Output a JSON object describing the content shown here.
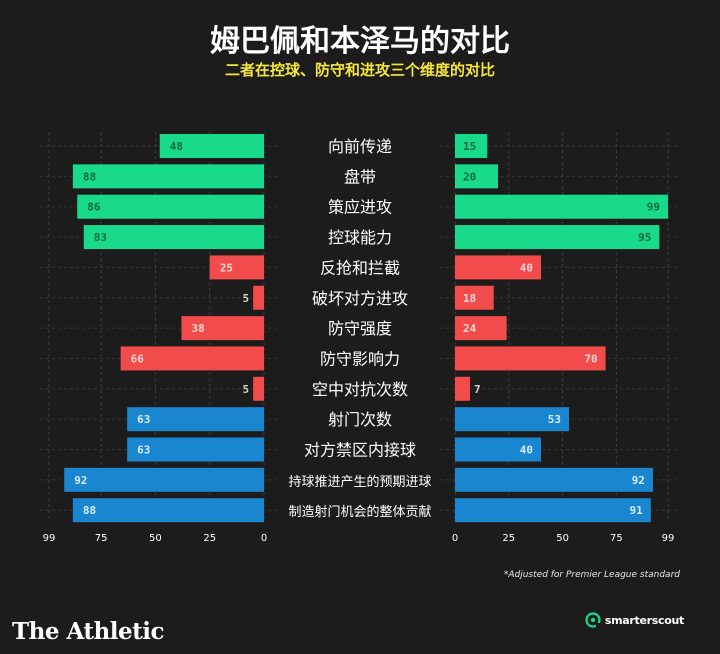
{
  "title": "姆巴佩和本泽马的对比",
  "subtitle": "二者在控球、防守和进攻三个维度的对比",
  "footnote": "*Adjusted for Premier League standard",
  "branding": {
    "publisher": "The Athletic",
    "partner": "smarterscout",
    "partner_icon": "smarterscout-logo-icon"
  },
  "chart_data": {
    "type": "bar",
    "orientation": "horizontal-butterfly",
    "categories": [
      "向前传递",
      "盘带",
      "策应进攻",
      "控球能力",
      "反抢和拦截",
      "破坏对方进攻",
      "防守强度",
      "防守影响力",
      "空中对抗次数",
      "射门次数",
      "对方禁区内接球",
      "持球推进产生的预期进球",
      "制造射门机会的整体贡献"
    ],
    "groups": [
      {
        "name": "控球",
        "color": "#19d98a",
        "label_color": "#0b6b3f",
        "indices": [
          0,
          1,
          2,
          3
        ]
      },
      {
        "name": "防守",
        "color": "#f24b4b",
        "label_color": "#ffd6d6",
        "indices": [
          4,
          5,
          6,
          7,
          8
        ]
      },
      {
        "name": "进攻",
        "color": "#1a86cf",
        "label_color": "#d6ecff",
        "indices": [
          9,
          10,
          11,
          12
        ]
      }
    ],
    "series": [
      {
        "side": "left",
        "values": [
          48,
          88,
          86,
          83,
          25,
          5,
          38,
          66,
          5,
          63,
          63,
          92,
          88
        ]
      },
      {
        "side": "right",
        "values": [
          15,
          20,
          99,
          95,
          40,
          18,
          24,
          70,
          7,
          53,
          40,
          92,
          91
        ]
      }
    ],
    "xlim": [
      0,
      99
    ],
    "ticks": [
      0,
      25,
      50,
      75,
      99
    ],
    "left_tick_labels": [
      "99",
      "75",
      "50",
      "25",
      "0"
    ],
    "right_tick_labels": [
      "0",
      "25",
      "50",
      "75",
      "99"
    ],
    "grid": true,
    "label_outside_below": 10,
    "small_label_color": "#cfcfcf"
  }
}
